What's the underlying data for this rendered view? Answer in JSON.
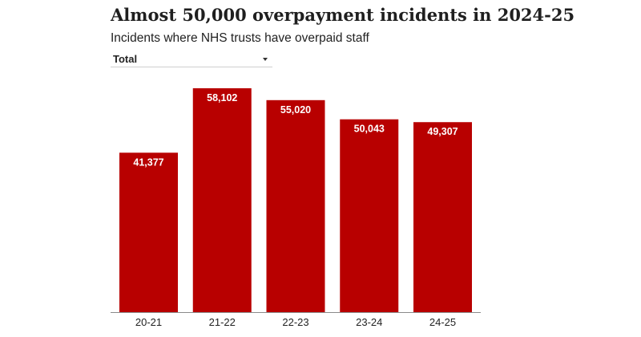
{
  "title": "Almost 50,000 overpayment incidents in 2024-25",
  "subtitle": "Incidents where NHS trusts have overpaid staff",
  "filter": {
    "selected": "Total",
    "icon": "chevron-down-icon"
  },
  "colors": {
    "bar": "#b80000",
    "value_label": "#ffffff",
    "axis_line": "#8a8a8a",
    "tick_label": "#222222"
  },
  "chart_data": {
    "type": "bar",
    "categories": [
      "20-21",
      "21-22",
      "22-23",
      "23-24",
      "24-25"
    ],
    "values": [
      41377,
      58102,
      55020,
      50043,
      49307
    ],
    "value_labels": [
      "41,377",
      "58,102",
      "55,020",
      "50,043",
      "49,307"
    ],
    "title": "Almost 50,000 overpayment incidents in 2024-25",
    "subtitle": "Incidents where NHS trusts have overpaid staff",
    "xlabel": "",
    "ylabel": "",
    "ylim": [
      0,
      58102
    ],
    "grid": false,
    "legend": "none"
  }
}
